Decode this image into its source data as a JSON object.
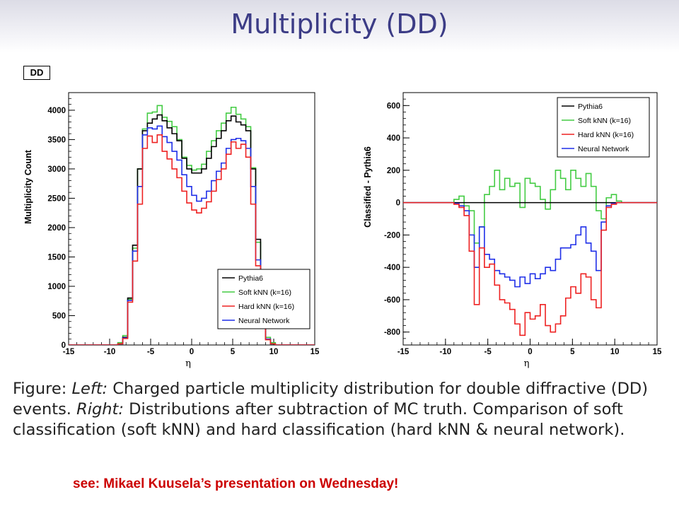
{
  "slide": {
    "title": "Multiplicity (DD)",
    "tag": "DD",
    "caption": {
      "figure_word": "Figure:",
      "left_word": "Left:",
      "left_text": "Charged particle multiplicity distribution for double diffractive (DD) events.",
      "right_word": "Right:",
      "right_text": "Distributions after subtraction of MC truth. Comparison of soft classification (soft kNN) and hard classification (hard kNN & neural network)."
    },
    "note": "see: Mikael Kuusela’s presentation on Wednesday!"
  },
  "colors": {
    "title": "#3c3c86",
    "note": "#cc0000",
    "pythia6": "#000000",
    "soft_knn": "#44cc44",
    "hard_knn": "#ee2222",
    "neural_network": "#1f2fe8"
  },
  "chart_data": [
    {
      "type": "line",
      "style": "step histogram",
      "title": "",
      "xlabel": "η",
      "ylabel": "Multiplicity Count",
      "xlim": [
        -15,
        15
      ],
      "ylim": [
        0,
        4300
      ],
      "xticks": [
        -15,
        -10,
        -5,
        0,
        5,
        10,
        15
      ],
      "yticks": [
        0,
        500,
        1000,
        1500,
        2000,
        2500,
        3000,
        3500,
        4000
      ],
      "grid": false,
      "legend_position": "bottom-right",
      "bin_edges_range": [
        -15,
        15
      ],
      "bin_width": 0.6,
      "series": [
        {
          "name": "Pythia6",
          "color": "#000000",
          "values": [
            0,
            0,
            0,
            0,
            0,
            0,
            0,
            0,
            0,
            0,
            20,
            130,
            800,
            1700,
            3000,
            3650,
            3780,
            3850,
            3920,
            3820,
            3700,
            3600,
            3480,
            3180,
            3000,
            2930,
            2930,
            3000,
            3180,
            3380,
            3520,
            3650,
            3820,
            3900,
            3800,
            3750,
            3650,
            3000,
            1800,
            800,
            100,
            20,
            0,
            0,
            0,
            0,
            0,
            0,
            0,
            0
          ]
        },
        {
          "name": "Soft kNN (k=16)",
          "color": "#44cc44",
          "values": [
            0,
            0,
            0,
            0,
            0,
            0,
            0,
            0,
            0,
            0,
            40,
            160,
            780,
            1650,
            3000,
            3680,
            3950,
            3970,
            4080,
            3880,
            3810,
            3720,
            3500,
            3200,
            3060,
            2980,
            3000,
            3080,
            3300,
            3480,
            3650,
            3780,
            3950,
            4050,
            3930,
            3850,
            3720,
            3020,
            1750,
            780,
            130,
            40,
            0,
            0,
            0,
            0,
            0,
            0,
            0,
            0
          ]
        },
        {
          "name": "Hard kNN (k=16)",
          "color": "#ee2222",
          "values": [
            0,
            0,
            0,
            0,
            0,
            0,
            0,
            0,
            0,
            0,
            20,
            110,
            730,
            1430,
            2400,
            3350,
            3560,
            3450,
            3580,
            3300,
            3170,
            3000,
            2850,
            2620,
            2420,
            2300,
            2250,
            2330,
            2440,
            2620,
            2820,
            3000,
            3250,
            3460,
            3350,
            3420,
            3200,
            2400,
            1350,
            720,
            90,
            20,
            0,
            0,
            0,
            0,
            0,
            0,
            0,
            0
          ]
        },
        {
          "name": "Neural Network",
          "color": "#1f2fe8",
          "values": [
            0,
            0,
            0,
            0,
            0,
            0,
            0,
            0,
            0,
            0,
            20,
            120,
            760,
            1600,
            2700,
            3580,
            3700,
            3680,
            3730,
            3550,
            3450,
            3300,
            3150,
            2900,
            2700,
            2550,
            2450,
            2500,
            2620,
            2800,
            2960,
            3100,
            3350,
            3500,
            3520,
            3480,
            3350,
            2700,
            1450,
            760,
            100,
            20,
            0,
            0,
            0,
            0,
            0,
            0,
            0,
            0
          ]
        }
      ]
    },
    {
      "type": "line",
      "style": "step histogram",
      "title": "",
      "xlabel": "η",
      "ylabel": "Classified - Pythia6",
      "xlim": [
        -15,
        15
      ],
      "ylim": [
        -880,
        680
      ],
      "xticks": [
        -15,
        -10,
        -5,
        0,
        5,
        10,
        15
      ],
      "yticks": [
        -800,
        -600,
        -400,
        -200,
        0,
        200,
        400,
        600
      ],
      "grid": false,
      "legend_position": "top-right",
      "bin_edges_range": [
        -15,
        15
      ],
      "bin_width": 0.6,
      "series": [
        {
          "name": "Pythia6",
          "color": "#000000",
          "values": [
            0,
            0,
            0,
            0,
            0,
            0,
            0,
            0,
            0,
            0,
            0,
            0,
            0,
            0,
            0,
            0,
            0,
            0,
            0,
            0,
            0,
            0,
            0,
            0,
            0,
            0,
            0,
            0,
            0,
            0,
            0,
            0,
            0,
            0,
            0,
            0,
            0,
            0,
            0,
            0,
            0,
            0,
            0,
            0,
            0,
            0,
            0,
            0,
            0,
            0
          ]
        },
        {
          "name": "Soft kNN (k=16)",
          "color": "#44cc44",
          "values": [
            0,
            0,
            0,
            0,
            0,
            0,
            0,
            0,
            0,
            0,
            20,
            40,
            -20,
            -50,
            -250,
            -150,
            50,
            100,
            200,
            80,
            150,
            100,
            120,
            -30,
            150,
            120,
            100,
            20,
            -40,
            80,
            200,
            150,
            80,
            200,
            150,
            100,
            180,
            100,
            -50,
            -100,
            30,
            50,
            10,
            0,
            0,
            0,
            0,
            0,
            0,
            0
          ]
        },
        {
          "name": "Hard kNN (k=16)",
          "color": "#ee2222",
          "values": [
            0,
            0,
            0,
            0,
            0,
            0,
            0,
            0,
            0,
            0,
            -10,
            -30,
            -80,
            -300,
            -630,
            -280,
            -400,
            -380,
            -510,
            -600,
            -620,
            -660,
            -750,
            -820,
            -680,
            -720,
            -700,
            -630,
            -760,
            -800,
            -750,
            -700,
            -590,
            -520,
            -560,
            -440,
            -460,
            -600,
            -650,
            -170,
            -30,
            -10,
            0,
            0,
            0,
            0,
            0,
            0,
            0,
            0
          ]
        },
        {
          "name": "Neural Network",
          "color": "#1f2fe8",
          "values": [
            0,
            0,
            0,
            0,
            0,
            0,
            0,
            0,
            0,
            0,
            -5,
            -20,
            -50,
            -200,
            -400,
            -150,
            -320,
            -350,
            -420,
            -440,
            -460,
            -480,
            -520,
            -460,
            -500,
            -440,
            -470,
            -440,
            -400,
            -420,
            -350,
            -280,
            -280,
            -260,
            -200,
            -150,
            -250,
            -300,
            -420,
            -120,
            -20,
            -5,
            0,
            0,
            0,
            0,
            0,
            0,
            0,
            0
          ]
        }
      ]
    }
  ]
}
